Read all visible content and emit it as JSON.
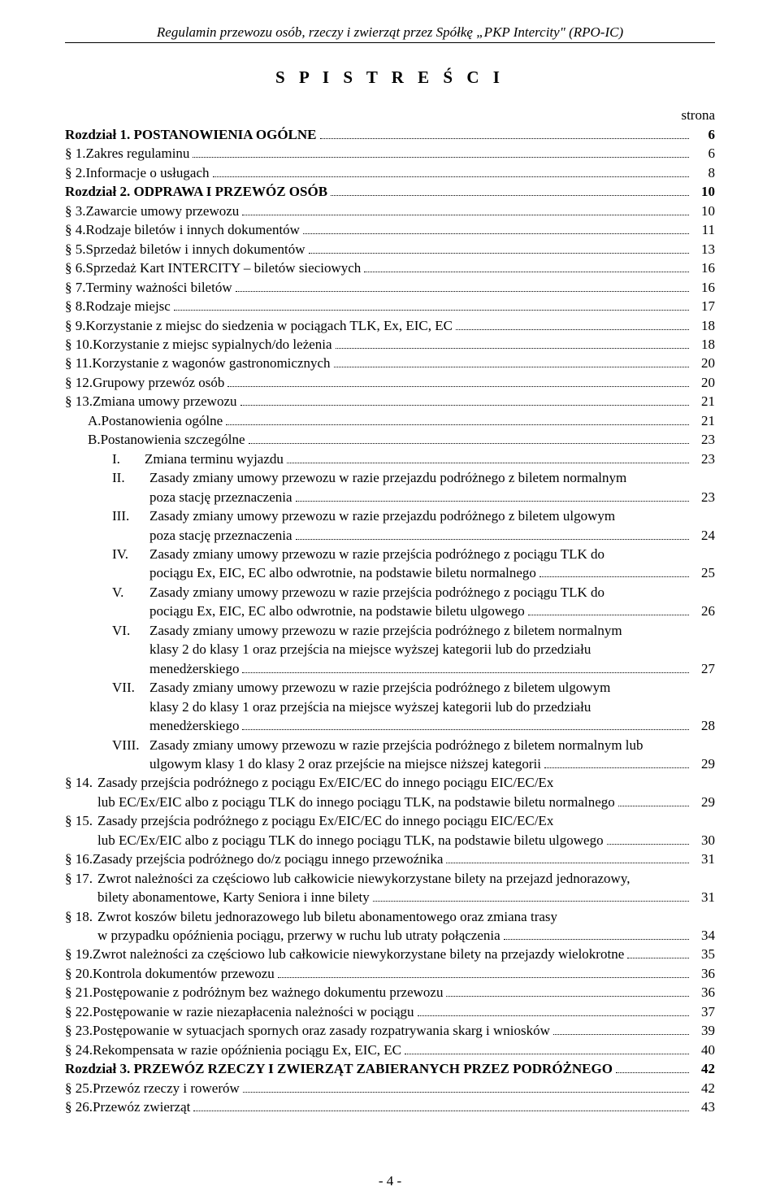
{
  "header": "Regulamin przewozu osób, rzeczy i zwierząt przez Spółkę „PKP Intercity\" (RPO-IC)",
  "title": "S P I S  T R E Ś C I",
  "strona": "strona",
  "footer": "- 4 -",
  "entries": [
    {
      "type": "simple",
      "bold": true,
      "label": "",
      "text": "Rozdział 1. POSTANOWIENIA OGÓLNE",
      "page": "6"
    },
    {
      "type": "simple",
      "label": "§  1.",
      "text": "Zakres regulaminu",
      "page": "6"
    },
    {
      "type": "simple",
      "label": "§  2.",
      "text": "Informacje o usługach",
      "page": "8"
    },
    {
      "type": "simple",
      "bold": true,
      "label": "",
      "text": "Rozdział 2. ODPRAWA I PRZEWÓZ OSÓB",
      "page": "10"
    },
    {
      "type": "simple",
      "label": "§  3.",
      "text": "Zawarcie umowy przewozu",
      "page": "10"
    },
    {
      "type": "simple",
      "label": "§  4.",
      "text": "Rodzaje biletów i innych dokumentów",
      "page": "11"
    },
    {
      "type": "simple",
      "label": "§  5.",
      "text": "Sprzedaż biletów i innych dokumentów",
      "page": "13"
    },
    {
      "type": "simple",
      "label": "§  6.",
      "text": "Sprzedaż Kart INTERCITY – biletów sieciowych",
      "page": "16"
    },
    {
      "type": "simple",
      "label": "§  7.",
      "text": "Terminy ważności biletów",
      "page": "16"
    },
    {
      "type": "simple",
      "label": "§  8.",
      "text": "Rodzaje miejsc",
      "page": "17"
    },
    {
      "type": "simple",
      "label": "§  9.",
      "text": "Korzystanie z miejsc do siedzenia w pociągach TLK, Ex, EIC, EC",
      "page": "18"
    },
    {
      "type": "simple",
      "label": "§ 10.",
      "text": "Korzystanie z miejsc sypialnych/do leżenia",
      "page": "18"
    },
    {
      "type": "simple",
      "label": "§ 11.",
      "text": "Korzystanie z wagonów gastronomicznych",
      "page": "20"
    },
    {
      "type": "simple",
      "label": "§ 12.",
      "text": "Grupowy przewóz osób",
      "page": "20"
    },
    {
      "type": "simple",
      "label": "§ 13.",
      "text": "Zmiana umowy przewozu",
      "page": "21"
    },
    {
      "type": "simple",
      "indent": "ind1",
      "label": "A.",
      "text": "Postanowienia ogólne",
      "page": "21"
    },
    {
      "type": "simple",
      "indent": "ind1",
      "label": "B.",
      "text": "Postanowienia szczególne",
      "page": "23"
    },
    {
      "type": "simple",
      "indent": "ind2",
      "label": "I.",
      "roman": true,
      "text": "Zmiana terminu wyjazdu",
      "page": "23"
    },
    {
      "type": "wrap",
      "indent": "ind2",
      "label": "II.",
      "roman": true,
      "lines": [
        "Zasady zmiany umowy przewozu w razie przejazdu podróżnego z biletem normalnym"
      ],
      "last": "poza stację przeznaczenia",
      "page": "23"
    },
    {
      "type": "wrap",
      "indent": "ind2",
      "label": "III.",
      "roman": true,
      "lines": [
        "Zasady zmiany umowy przewozu w razie przejazdu podróżnego z biletem ulgowym"
      ],
      "last": "poza stację przeznaczenia",
      "page": "24"
    },
    {
      "type": "wrap",
      "indent": "ind2",
      "label": "IV.",
      "roman": true,
      "lines": [
        "Zasady zmiany umowy przewozu w razie przejścia podróżnego z pociągu TLK do"
      ],
      "last": "pociągu Ex, EIC, EC albo odwrotnie, na podstawie biletu normalnego",
      "page": "25"
    },
    {
      "type": "wrap",
      "indent": "ind2",
      "label": "V.",
      "roman": true,
      "lines": [
        "Zasady zmiany umowy przewozu w razie przejścia podróżnego z pociągu TLK do"
      ],
      "last": "pociągu Ex, EIC, EC albo odwrotnie, na podstawie biletu ulgowego",
      "page": "26"
    },
    {
      "type": "wrap",
      "indent": "ind2",
      "label": "VI.",
      "roman": true,
      "lines": [
        "Zasady zmiany umowy przewozu w razie przejścia podróżnego z biletem normalnym",
        "klasy 2 do klasy 1 oraz przejścia na miejsce wyższej kategorii lub do przedziału"
      ],
      "last": "menedżerskiego",
      "page": "27"
    },
    {
      "type": "wrap",
      "indent": "ind2",
      "label": "VII.",
      "roman": true,
      "lines": [
        "Zasady zmiany umowy przewozu w razie przejścia podróżnego z biletem ulgowym",
        "klasy 2 do klasy 1 oraz przejścia na miejsce wyższej kategorii lub do przedziału"
      ],
      "last": "menedżerskiego",
      "page": "28"
    },
    {
      "type": "wrap",
      "indent": "ind2",
      "label": "VIII.",
      "roman": true,
      "lines": [
        "Zasady zmiany umowy przewozu w razie przejścia podróżnego z biletem normalnym lub"
      ],
      "last": "ulgowym klasy 1 do klasy 2 oraz przejście na miejsce niższej kategorii",
      "page": "29"
    },
    {
      "type": "wrap",
      "label": "§ 14.",
      "lines": [
        "Zasady przejścia podróżnego z pociągu Ex/EIC/EC do innego pociągu EIC/EC/Ex"
      ],
      "last": "lub EC/Ex/EIC albo z pociągu TLK do innego pociągu TLK, na podstawie biletu normalnego",
      "page": "29"
    },
    {
      "type": "wrap",
      "label": "§ 15.",
      "lines": [
        "Zasady przejścia podróżnego z pociągu Ex/EIC/EC do innego pociągu EIC/EC/Ex"
      ],
      "last": "lub EC/Ex/EIC albo z pociągu TLK do innego pociągu TLK, na podstawie biletu ulgowego",
      "page": "30"
    },
    {
      "type": "simple",
      "label": "§ 16.",
      "text": "Zasady przejścia podróżnego do/z pociągu innego przewoźnika",
      "page": "31"
    },
    {
      "type": "wrap",
      "label": "§ 17.",
      "lines": [
        "Zwrot należności za częściowo lub całkowicie niewykorzystane bilety na przejazd jednorazowy,"
      ],
      "last": "bilety abonamentowe, Karty Seniora i inne bilety",
      "page": "31"
    },
    {
      "type": "wrap",
      "label": "§ 18.",
      "lines": [
        "Zwrot koszów biletu jednorazowego lub biletu abonamentowego oraz zmiana trasy"
      ],
      "last": "w przypadku opóźnienia pociągu, przerwy w ruchu lub utraty połączenia",
      "page": "34"
    },
    {
      "type": "simple",
      "label": "§ 19.",
      "text": "Zwrot należności za częściowo lub całkowicie niewykorzystane bilety na przejazdy wielokrotne",
      "page": "35"
    },
    {
      "type": "simple",
      "label": "§ 20.",
      "text": "Kontrola dokumentów przewozu",
      "page": "36"
    },
    {
      "type": "simple",
      "label": "§ 21.",
      "text": "Postępowanie z podróżnym bez ważnego dokumentu przewozu",
      "page": "36"
    },
    {
      "type": "simple",
      "label": "§ 22.",
      "text": "Postępowanie w razie niezapłacenia należności w pociągu",
      "page": "37"
    },
    {
      "type": "simple",
      "label": "§ 23.",
      "text": "Postępowanie w sytuacjach spornych oraz zasady rozpatrywania skarg i wniosków",
      "page": "39"
    },
    {
      "type": "simple",
      "label": "§ 24.",
      "text": "Rekompensata w razie opóźnienia pociągu Ex, EIC, EC",
      "page": "40"
    },
    {
      "type": "simple",
      "bold": true,
      "label": "",
      "text": "Rozdział 3. PRZEWÓZ RZECZY I ZWIERZĄT ZABIERANYCH PRZEZ PODRÓŻNEGO",
      "page": "42"
    },
    {
      "type": "simple",
      "label": "§ 25.",
      "text": "Przewóz rzeczy i rowerów",
      "page": "42"
    },
    {
      "type": "simple",
      "label": "§ 26.",
      "text": "Przewóz zwierząt",
      "page": "43"
    }
  ]
}
